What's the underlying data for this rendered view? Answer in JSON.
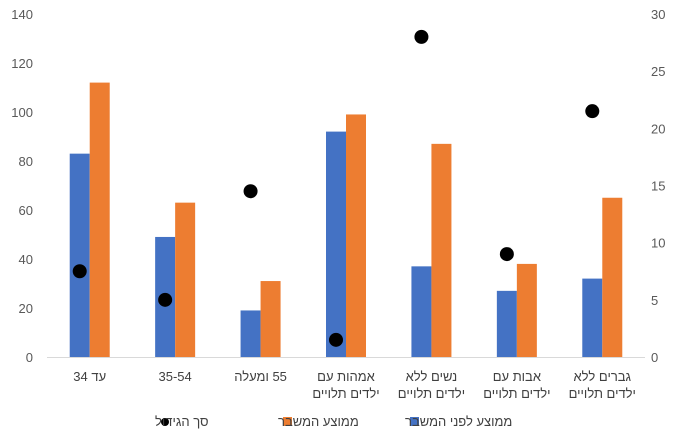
{
  "chart_data": {
    "type": "bar",
    "categories": [
      [
        "עד 34"
      ],
      [
        "35-54"
      ],
      [
        "55 ומעלה"
      ],
      [
        "אמהות עם",
        "ילדים תלויים"
      ],
      [
        "נשים ללא",
        "ילדים תלויים"
      ],
      [
        "אבות עם",
        "ילדים תלויים"
      ],
      [
        "גברים ללא",
        "ילדים תלויים"
      ]
    ],
    "series": [
      {
        "name": "ממוצע לפני המשבר",
        "color": "#4472C4",
        "axis": "left",
        "values": [
          83,
          49,
          19,
          92,
          37,
          27,
          32
        ]
      },
      {
        "name": "ממוצע המשבר",
        "color": "#ED7D31",
        "axis": "left",
        "values": [
          112,
          63,
          31,
          99,
          87,
          38,
          65
        ]
      },
      {
        "name": "סך הגידול",
        "color": "#000000",
        "axis": "right",
        "marker": "circle",
        "values": [
          7.5,
          5,
          14.5,
          1.5,
          28,
          9,
          21.5
        ]
      }
    ],
    "yleft": {
      "ylim": [
        0,
        140
      ],
      "ticks": [
        0,
        20,
        40,
        60,
        80,
        100,
        120,
        140
      ]
    },
    "yright": {
      "ylim": [
        0,
        30
      ],
      "ticks": [
        0,
        5,
        10,
        15,
        20,
        25,
        30
      ]
    },
    "grid": false,
    "legend": "bottom",
    "title": "",
    "xlabel": "",
    "ylabel": ""
  }
}
